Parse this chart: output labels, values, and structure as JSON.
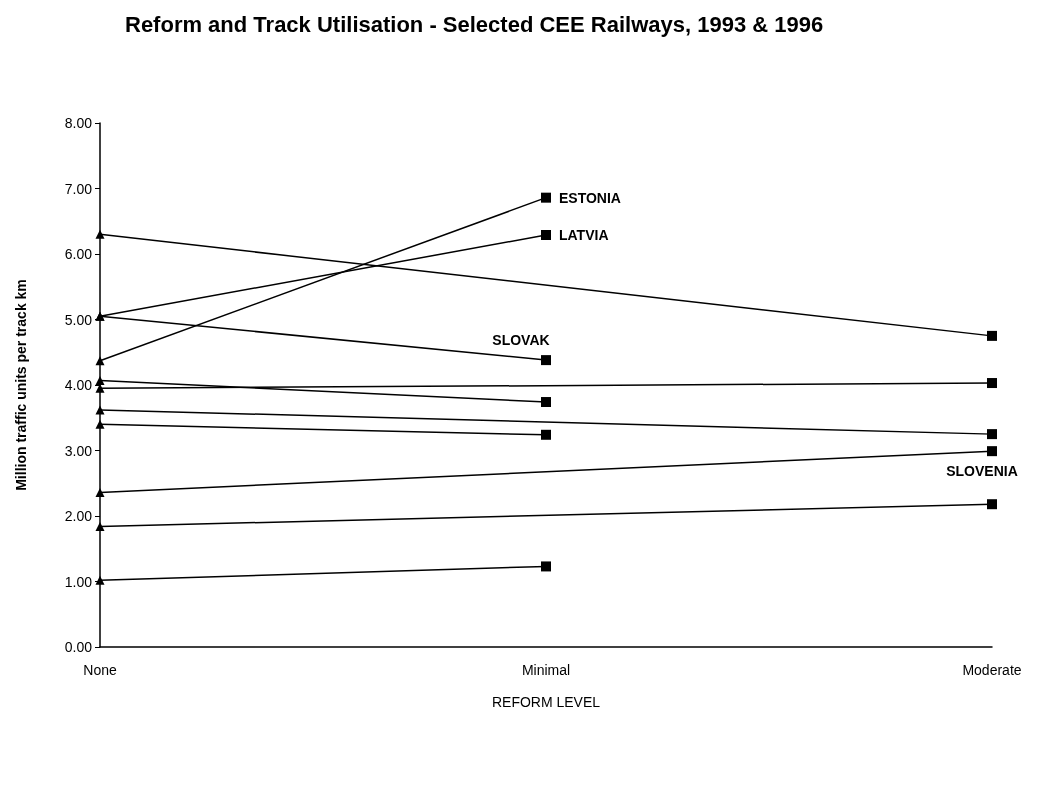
{
  "chart_data": {
    "type": "line",
    "title": "Reform and Track Utilisation - Selected CEE Railways, 1993 & 1996",
    "xlabel": "REFORM LEVEL",
    "ylabel": "Million traffic units per track km",
    "categories": [
      "None",
      "Minimal",
      "Moderate"
    ],
    "ylim": [
      0,
      8
    ],
    "yticks": [
      {
        "value": 0,
        "label": "0.00"
      },
      {
        "value": 1,
        "label": "1.00"
      },
      {
        "value": 2,
        "label": "2.00"
      },
      {
        "value": 3,
        "label": "3.00"
      },
      {
        "value": 4,
        "label": "4.00"
      },
      {
        "value": 5,
        "label": "5.00"
      },
      {
        "value": 6,
        "label": "6.00"
      },
      {
        "value": 7,
        "label": "7.00"
      },
      {
        "value": 8,
        "label": "8.00"
      }
    ],
    "grid": false,
    "legend": false,
    "marker": [
      "triangle",
      "square"
    ],
    "line_style": "solid",
    "series": [
      {
        "name": "ESTONIA",
        "color": "#000000",
        "x": [
          "None",
          "Minimal"
        ],
        "values": [
          4.37,
          6.86
        ]
      },
      {
        "name": "LATVIA",
        "color": "#000000",
        "x": [
          "None",
          "Minimal"
        ],
        "values": [
          5.05,
          6.29
        ]
      },
      {
        "color": "#000000",
        "x": [
          "None",
          "Moderate"
        ],
        "values": [
          6.3,
          4.75
        ]
      },
      {
        "name": "SLOVAK",
        "color": "#000000",
        "x": [
          "None",
          "Minimal"
        ],
        "values": [
          5.05,
          4.38
        ]
      },
      {
        "color": "#000000",
        "x": [
          "None",
          "Minimal"
        ],
        "values": [
          4.07,
          3.74
        ]
      },
      {
        "color": "#000000",
        "x": [
          "None",
          "Moderate"
        ],
        "values": [
          3.95,
          4.03
        ]
      },
      {
        "color": "#000000",
        "x": [
          "None",
          "Moderate"
        ],
        "values": [
          3.62,
          3.25
        ]
      },
      {
        "color": "#000000",
        "x": [
          "None",
          "Minimal"
        ],
        "values": [
          3.4,
          3.24
        ]
      },
      {
        "name": "SLOVENIA",
        "color": "#000000",
        "x": [
          "None",
          "Moderate"
        ],
        "values": [
          2.36,
          2.99
        ]
      },
      {
        "color": "#000000",
        "x": [
          "None",
          "Moderate"
        ],
        "values": [
          1.84,
          2.18
        ]
      },
      {
        "color": "#000000",
        "x": [
          "None",
          "Minimal"
        ],
        "values": [
          1.02,
          1.23
        ]
      }
    ]
  }
}
